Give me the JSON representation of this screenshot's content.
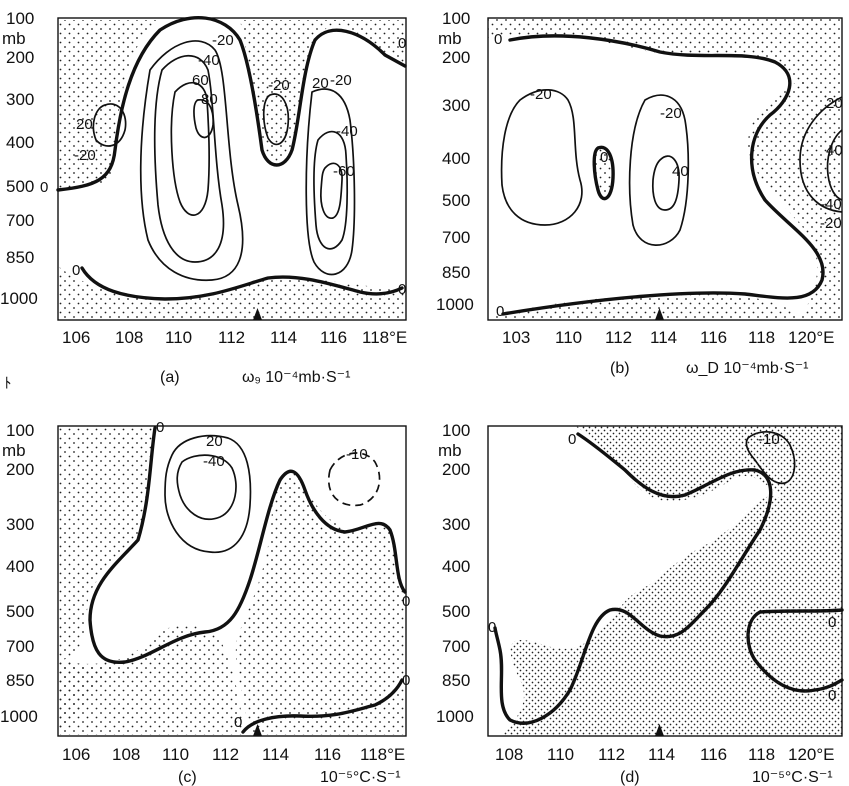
{
  "chart_data": [
    {
      "type": "contour",
      "panel_label": "(a)",
      "quantity_label": "ω₉ 10⁻⁴mb·S⁻¹",
      "x_ticks": [
        "106",
        "108",
        "110",
        "112",
        "114",
        "116",
        "118°E"
      ],
      "y_unit": "mb",
      "y_ticks": [
        "100",
        "200",
        "300",
        "400",
        "500",
        "700",
        "850",
        "1000"
      ],
      "contour_labels": [
        "0",
        "-20",
        "-40",
        "60",
        "-80",
        "20",
        "-20",
        "0",
        "-20",
        "-40",
        "-60",
        "20",
        "-20",
        "0",
        "0",
        "0"
      ],
      "marker_x": 113
    },
    {
      "type": "contour",
      "panel_label": "(b)",
      "quantity_label": "ω_D 10⁻⁴mb·S⁻¹",
      "x_ticks": [
        "103",
        "110",
        "112",
        "114",
        "116",
        "118",
        "120°E"
      ],
      "y_unit": "mb",
      "y_ticks": [
        "100",
        "200",
        "300",
        "400",
        "500",
        "700",
        "850",
        "1000"
      ],
      "contour_labels": [
        "0",
        "-20",
        "0",
        "-20",
        "40",
        "20",
        "40",
        "-40",
        "-20",
        "0"
      ],
      "marker_x": 114
    },
    {
      "type": "contour",
      "panel_label": "(c)",
      "quantity_label": "10⁻⁵°C·S⁻¹",
      "x_ticks": [
        "106",
        "108",
        "110",
        "112",
        "114",
        "116",
        "118°E"
      ],
      "y_unit": "mb",
      "y_ticks": [
        "100",
        "200",
        "300",
        "400",
        "500",
        "700",
        "850",
        "1000"
      ],
      "contour_labels": [
        "0",
        "20",
        "-40",
        "-10",
        "0",
        "0",
        "0"
      ],
      "marker_x": 113
    },
    {
      "type": "contour",
      "panel_label": "(d)",
      "quantity_label": "10⁻⁵°C·S⁻¹",
      "x_ticks": [
        "108",
        "110",
        "112",
        "114",
        "116",
        "118",
        "120°E"
      ],
      "y_unit": "mb",
      "y_ticks": [
        "100",
        "200",
        "300",
        "400",
        "500",
        "700",
        "850",
        "1000"
      ],
      "contour_labels": [
        "0",
        "-10",
        "0",
        "0",
        "0"
      ],
      "marker_x": 114
    }
  ],
  "stray_glyph": "ﾄ"
}
